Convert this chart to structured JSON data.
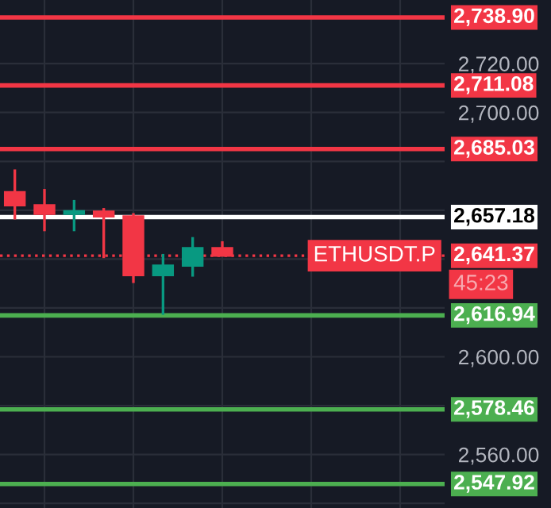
{
  "chart_data": {
    "type": "candlestick",
    "categories": [
      null,
      null,
      null,
      null,
      null,
      null,
      null,
      null,
      null,
      null,
      null,
      null,
      null,
      null,
      null
    ],
    "ohlc": [
      [
        2667.4,
        2676.7,
        2656.2,
        2662.0
      ],
      [
        2662.0,
        2668.7,
        2651.4,
        2658.5
      ],
      [
        2658.5,
        2664.2,
        2651.4,
        2659.6
      ],
      [
        2659.4,
        2660.9,
        2640.4,
        2657.5
      ],
      [
        2657.5,
        2658.8,
        2630.2,
        2633.4
      ],
      [
        2633.4,
        2642.1,
        2617.2,
        2637.3
      ],
      [
        2637.3,
        2649.0,
        2632.8,
        2644.5
      ],
      [
        2644.5,
        2647.3,
        2641.37,
        2641.37
      ],
      null,
      null,
      null,
      null,
      null,
      null,
      null
    ],
    "colors": [
      "#f23645",
      "#f23645",
      "#089981",
      "#f23645",
      "#f23645",
      "#089981",
      "#089981",
      "#f23645",
      null,
      null,
      null,
      null,
      null,
      null,
      null
    ],
    "ylim": [
      2538.1,
      2746.05
    ],
    "yticks": [
      {
        "value": 2540,
        "label": null
      },
      {
        "value": 2560,
        "label": "2,560.00"
      },
      {
        "value": 2580,
        "label": null
      },
      {
        "value": 2600,
        "label": "2,600.00"
      },
      {
        "value": 2620,
        "label": null
      },
      {
        "value": 2640,
        "label": null
      },
      {
        "value": 2660,
        "label": null
      },
      {
        "value": 2680,
        "label": null
      },
      {
        "value": 2700,
        "label": "2,700.00"
      },
      {
        "value": 2720,
        "label": "2,720.00"
      }
    ],
    "grid": true,
    "ref_lines": [
      {
        "axis": "y",
        "value": 2738.9,
        "label": "2,738.90",
        "color": "#f23645",
        "line_style": "solid"
      },
      {
        "axis": "y",
        "value": 2711.08,
        "label": "2,711.08",
        "color": "#f23645",
        "line_style": "solid"
      },
      {
        "axis": "y",
        "value": 2685.03,
        "label": "2,685.03",
        "color": "#f23645",
        "line_style": "solid"
      },
      {
        "axis": "y",
        "value": 2657.18,
        "label": "2,657.18",
        "color": "#ffffff",
        "line_style": "solid"
      },
      {
        "axis": "y",
        "value": 2641.37,
        "label": "2,641.37",
        "color": "#f23645",
        "line_style": "dotted"
      },
      {
        "axis": "y",
        "value": 2616.94,
        "label": "2,616.94",
        "color": "#4caf50",
        "line_style": "solid"
      },
      {
        "axis": "y",
        "value": 2578.46,
        "label": "2,578.46",
        "color": "#4caf50",
        "line_style": "solid"
      },
      {
        "axis": "y",
        "value": 2547.92,
        "label": "2,547.92",
        "color": "#4caf50",
        "line_style": "solid"
      }
    ],
    "annotations": [
      {
        "text": "ETHUSDT.P",
        "y": 2641.37
      },
      "45:23"
    ]
  }
}
